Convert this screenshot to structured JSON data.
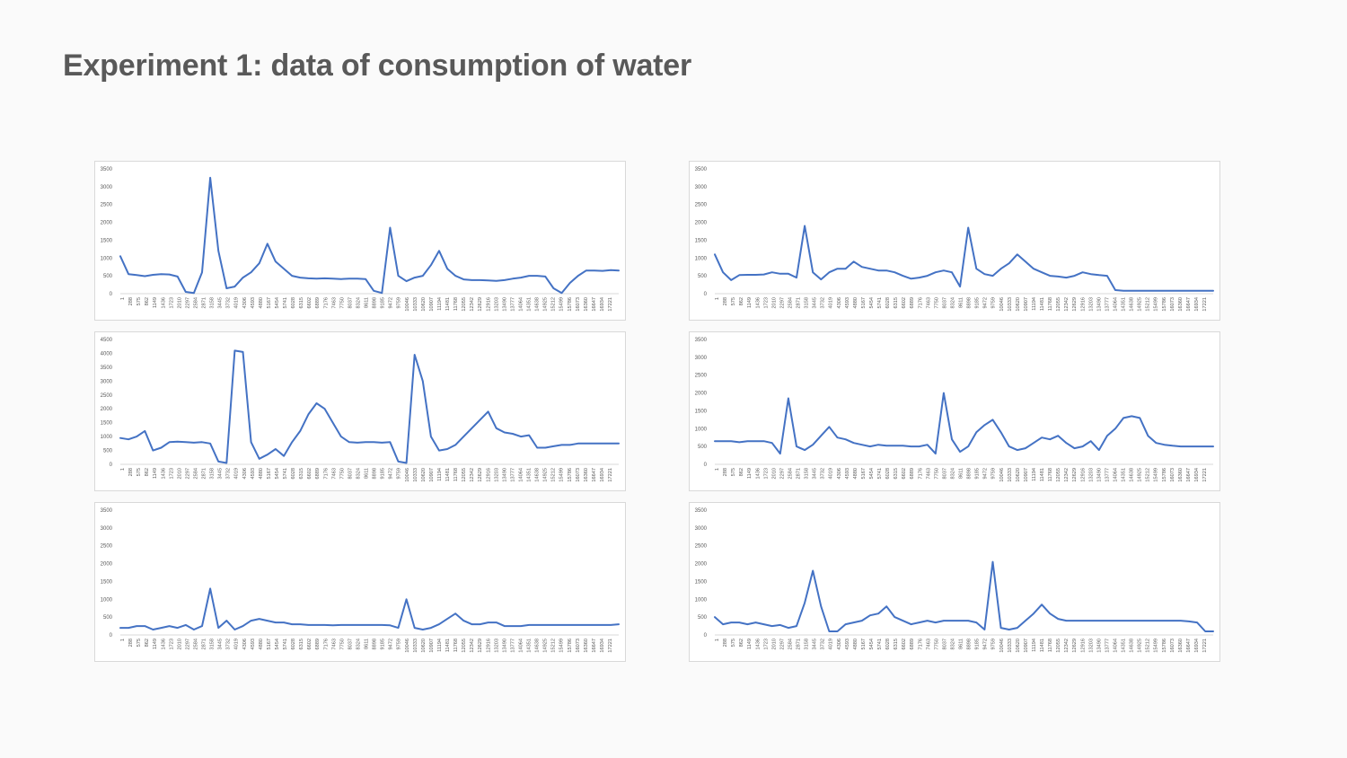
{
  "slide": {
    "title": "Experiment 1: data of consumption of water"
  },
  "chart_data": [
    {
      "type": "line",
      "legend": "none",
      "grid": false,
      "ylim": [
        0,
        3500
      ],
      "yticks": [
        "0",
        "500",
        "1000",
        "1500",
        "2000",
        "2500",
        "3000",
        "3500"
      ],
      "xticks": [
        "1",
        "288",
        "575",
        "862",
        "1149",
        "1436",
        "1723",
        "2010",
        "2297",
        "2584",
        "2871",
        "3158",
        "3445",
        "3732",
        "4019",
        "4306",
        "4593",
        "4880",
        "5167",
        "5454",
        "5741",
        "6028",
        "6315",
        "6602",
        "6889",
        "7176",
        "7463",
        "7750",
        "8037",
        "8324",
        "8611",
        "8898",
        "9185",
        "9472",
        "9759",
        "10046",
        "10333",
        "10620",
        "10907",
        "11194",
        "11481",
        "11768",
        "12055",
        "12342",
        "12629",
        "12916",
        "13203",
        "13490",
        "13777",
        "14064",
        "14351",
        "14638",
        "14925",
        "15212",
        "15499",
        "15786",
        "16073",
        "16360",
        "16647",
        "16934",
        "17221"
      ],
      "x": [
        1,
        288,
        575,
        862,
        1149,
        1436,
        1723,
        2010,
        2297,
        2584,
        2871,
        3158,
        3445,
        3732,
        4019,
        4306,
        4593,
        4880,
        5167,
        5454,
        5741,
        6028,
        6315,
        6602,
        6889,
        7176,
        7463,
        7750,
        8037,
        8324,
        8611,
        8898,
        9185,
        9472,
        9759,
        10046,
        10333,
        10620,
        10907,
        11194,
        11481,
        11768,
        12055,
        12342,
        12629,
        12916,
        13203,
        13490,
        13777,
        14064,
        14351,
        14638,
        14925,
        15212,
        15499,
        15786,
        16073,
        16360,
        16647,
        16934,
        17221,
        17500
      ],
      "values": [
        1050,
        550,
        520,
        490,
        530,
        550,
        540,
        480,
        50,
        20,
        600,
        3250,
        1200,
        150,
        200,
        450,
        600,
        850,
        1400,
        900,
        700,
        500,
        450,
        430,
        420,
        430,
        420,
        410,
        420,
        420,
        410,
        80,
        20,
        1850,
        500,
        350,
        450,
        500,
        800,
        1200,
        700,
        500,
        400,
        380,
        380,
        370,
        360,
        380,
        420,
        450,
        500,
        500,
        480,
        150,
        20,
        300,
        500,
        650,
        650,
        640,
        660,
        650
      ]
    },
    {
      "type": "line",
      "legend": "none",
      "grid": false,
      "ylim": [
        0,
        3500
      ],
      "yticks": [
        "0",
        "500",
        "1000",
        "1500",
        "2000",
        "2500",
        "3000",
        "3500"
      ],
      "xticks": [
        "1",
        "288",
        "575",
        "862",
        "1149",
        "1436",
        "1723",
        "2010",
        "2297",
        "2584",
        "2871",
        "3158",
        "3445",
        "3732",
        "4019",
        "4306",
        "4593",
        "4880",
        "5167",
        "5454",
        "5741",
        "6028",
        "6315",
        "6602",
        "6889",
        "7176",
        "7463",
        "7750",
        "8037",
        "8324",
        "8611",
        "8898",
        "9185",
        "9472",
        "9759",
        "10046",
        "10333",
        "10620",
        "10907",
        "11194",
        "11481",
        "11768",
        "12055",
        "12342",
        "12629",
        "12916",
        "13203",
        "13490",
        "13777",
        "14064",
        "14351",
        "14638",
        "14925",
        "15212",
        "15499",
        "15786",
        "16073",
        "16360",
        "16647",
        "16934",
        "17221"
      ],
      "x": [
        1,
        288,
        575,
        862,
        1149,
        1436,
        1723,
        2010,
        2297,
        2584,
        2871,
        3158,
        3445,
        3732,
        4019,
        4306,
        4593,
        4880,
        5167,
        5454,
        5741,
        6028,
        6315,
        6602,
        6889,
        7176,
        7463,
        7750,
        8037,
        8324,
        8611,
        8898,
        9185,
        9472,
        9759,
        10046,
        10333,
        10620,
        10907,
        11194,
        11481,
        11768,
        12055,
        12342,
        12629,
        12916,
        13203,
        13490,
        13777,
        14064,
        14351,
        14638,
        14925,
        15212,
        15499,
        15786,
        16073,
        16360,
        16647,
        16934,
        17221,
        17500
      ],
      "values": [
        1100,
        600,
        380,
        520,
        530,
        530,
        540,
        600,
        560,
        560,
        450,
        1900,
        600,
        400,
        600,
        700,
        700,
        900,
        750,
        700,
        650,
        650,
        600,
        500,
        420,
        450,
        500,
        600,
        650,
        600,
        200,
        1850,
        700,
        550,
        500,
        700,
        850,
        1100,
        900,
        700,
        600,
        500,
        480,
        450,
        500,
        600,
        550,
        520,
        500,
        100,
        80,
        80,
        80,
        80,
        80,
        80,
        80,
        80,
        80,
        80,
        80,
        80
      ]
    },
    {
      "type": "line",
      "legend": "none",
      "grid": false,
      "ylim": [
        0,
        4500
      ],
      "yticks": [
        "0",
        "500",
        "1000",
        "1500",
        "2000",
        "2500",
        "3000",
        "3500",
        "4000",
        "4500"
      ],
      "xticks": [
        "1",
        "288",
        "575",
        "862",
        "1149",
        "1436",
        "1723",
        "2010",
        "2297",
        "2584",
        "2871",
        "3158",
        "3445",
        "3732",
        "4019",
        "4306",
        "4593",
        "4880",
        "5167",
        "5454",
        "5741",
        "6028",
        "6315",
        "6602",
        "6889",
        "7176",
        "7463",
        "7750",
        "8037",
        "8324",
        "8611",
        "8898",
        "9185",
        "9472",
        "9759",
        "10046",
        "10333",
        "10620",
        "10907",
        "11194",
        "11481",
        "11768",
        "12055",
        "12342",
        "12629",
        "12916",
        "13203",
        "13490",
        "13777",
        "14064",
        "14351",
        "14638",
        "14925",
        "15212",
        "15499",
        "15786",
        "16073",
        "16360",
        "16647",
        "16934",
        "17221"
      ],
      "x": [
        1,
        288,
        575,
        862,
        1149,
        1436,
        1723,
        2010,
        2297,
        2584,
        2871,
        3158,
        3445,
        3732,
        4019,
        4306,
        4593,
        4880,
        5167,
        5454,
        5741,
        6028,
        6315,
        6602,
        6889,
        7176,
        7463,
        7750,
        8037,
        8324,
        8611,
        8898,
        9185,
        9472,
        9759,
        10046,
        10333,
        10620,
        10907,
        11194,
        11481,
        11768,
        12055,
        12342,
        12629,
        12916,
        13203,
        13490,
        13777,
        14064,
        14351,
        14638,
        14925,
        15212,
        15499,
        15786,
        16073,
        16360,
        16647,
        16934,
        17221,
        17500
      ],
      "values": [
        950,
        900,
        1000,
        1200,
        500,
        600,
        800,
        820,
        800,
        780,
        800,
        750,
        100,
        50,
        4100,
        4050,
        800,
        200,
        350,
        550,
        300,
        800,
        1200,
        1800,
        2200,
        2000,
        1500,
        1000,
        800,
        780,
        800,
        800,
        780,
        800,
        100,
        50,
        3950,
        3000,
        1000,
        500,
        550,
        700,
        1000,
        1300,
        1600,
        1900,
        1300,
        1150,
        1100,
        1000,
        1050,
        600,
        600,
        650,
        700,
        700,
        750,
        750,
        750,
        750,
        750,
        750
      ]
    },
    {
      "type": "line",
      "legend": "none",
      "grid": false,
      "ylim": [
        0,
        3500
      ],
      "yticks": [
        "0",
        "500",
        "1000",
        "1500",
        "2000",
        "2500",
        "3000",
        "3500"
      ],
      "xticks": [
        "1",
        "288",
        "575",
        "862",
        "1149",
        "1436",
        "1723",
        "2010",
        "2297",
        "2584",
        "2871",
        "3158",
        "3445",
        "3732",
        "4019",
        "4306",
        "4593",
        "4880",
        "5167",
        "5454",
        "5741",
        "6028",
        "6315",
        "6602",
        "6889",
        "7176",
        "7463",
        "7750",
        "8037",
        "8324",
        "8611",
        "8898",
        "9185",
        "9472",
        "9759",
        "10046",
        "10333",
        "10620",
        "10907",
        "11194",
        "11481",
        "11768",
        "12055",
        "12342",
        "12629",
        "12916",
        "13203",
        "13490",
        "13777",
        "14064",
        "14351",
        "14638",
        "14925",
        "15212",
        "15499",
        "15786",
        "16073",
        "16360",
        "16647",
        "16934",
        "17221"
      ],
      "x": [
        1,
        288,
        575,
        862,
        1149,
        1436,
        1723,
        2010,
        2297,
        2584,
        2871,
        3158,
        3445,
        3732,
        4019,
        4306,
        4593,
        4880,
        5167,
        5454,
        5741,
        6028,
        6315,
        6602,
        6889,
        7176,
        7463,
        7750,
        8037,
        8324,
        8611,
        8898,
        9185,
        9472,
        9759,
        10046,
        10333,
        10620,
        10907,
        11194,
        11481,
        11768,
        12055,
        12342,
        12629,
        12916,
        13203,
        13490,
        13777,
        14064,
        14351,
        14638,
        14925,
        15212,
        15499,
        15786,
        16073,
        16360,
        16647,
        16934,
        17221,
        17500
      ],
      "values": [
        650,
        650,
        650,
        620,
        650,
        650,
        650,
        600,
        300,
        1850,
        500,
        400,
        550,
        800,
        1050,
        750,
        700,
        600,
        550,
        500,
        550,
        520,
        520,
        520,
        500,
        500,
        550,
        300,
        2000,
        700,
        350,
        500,
        900,
        1100,
        1250,
        900,
        500,
        400,
        450,
        600,
        750,
        700,
        800,
        600,
        450,
        500,
        650,
        400,
        800,
        1000,
        1300,
        1350,
        1300,
        800,
        600,
        550,
        520,
        500,
        500,
        500,
        500,
        500
      ]
    },
    {
      "type": "line",
      "legend": "none",
      "grid": false,
      "ylim": [
        0,
        3500
      ],
      "yticks": [
        "0",
        "500",
        "1000",
        "1500",
        "2000",
        "2500",
        "3000",
        "3500"
      ],
      "xticks": [
        "1",
        "288",
        "575",
        "862",
        "1149",
        "1436",
        "1723",
        "2010",
        "2297",
        "2584",
        "2871",
        "3158",
        "3445",
        "3732",
        "4019",
        "4306",
        "4593",
        "4880",
        "5167",
        "5454",
        "5741",
        "6028",
        "6315",
        "6602",
        "6889",
        "7176",
        "7463",
        "7750",
        "8037",
        "8324",
        "8611",
        "8898",
        "9185",
        "9472",
        "9759",
        "10046",
        "10333",
        "10620",
        "10907",
        "11194",
        "11481",
        "11768",
        "12055",
        "12342",
        "12629",
        "12916",
        "13203",
        "13490",
        "13777",
        "14064",
        "14351",
        "14638",
        "14925",
        "15212",
        "15499",
        "15786",
        "16073",
        "16360",
        "16647",
        "16934",
        "17221"
      ],
      "x": [
        1,
        288,
        575,
        862,
        1149,
        1436,
        1723,
        2010,
        2297,
        2584,
        2871,
        3158,
        3445,
        3732,
        4019,
        4306,
        4593,
        4880,
        5167,
        5454,
        5741,
        6028,
        6315,
        6602,
        6889,
        7176,
        7463,
        7750,
        8037,
        8324,
        8611,
        8898,
        9185,
        9472,
        9759,
        10046,
        10333,
        10620,
        10907,
        11194,
        11481,
        11768,
        12055,
        12342,
        12629,
        12916,
        13203,
        13490,
        13777,
        14064,
        14351,
        14638,
        14925,
        15212,
        15499,
        15786,
        16073,
        16360,
        16647,
        16934,
        17221,
        17500
      ],
      "values": [
        200,
        200,
        250,
        250,
        150,
        200,
        250,
        200,
        280,
        150,
        250,
        1300,
        200,
        400,
        150,
        250,
        400,
        450,
        400,
        350,
        350,
        300,
        300,
        280,
        280,
        280,
        270,
        280,
        280,
        280,
        280,
        280,
        280,
        270,
        200,
        1000,
        200,
        150,
        200,
        300,
        450,
        600,
        400,
        300,
        300,
        350,
        350,
        250,
        250,
        250,
        280,
        280,
        280,
        280,
        280,
        280,
        280,
        280,
        280,
        280,
        280,
        300
      ]
    },
    {
      "type": "line",
      "legend": "none",
      "grid": false,
      "ylim": [
        0,
        3500
      ],
      "yticks": [
        "0",
        "500",
        "1000",
        "1500",
        "2000",
        "2500",
        "3000",
        "3500"
      ],
      "xticks": [
        "1",
        "288",
        "575",
        "862",
        "1149",
        "1436",
        "1723",
        "2010",
        "2297",
        "2584",
        "2871",
        "3158",
        "3445",
        "3732",
        "4019",
        "4306",
        "4593",
        "4880",
        "5167",
        "5454",
        "5741",
        "6028",
        "6315",
        "6602",
        "6889",
        "7176",
        "7463",
        "7750",
        "8037",
        "8324",
        "8611",
        "8898",
        "9185",
        "9472",
        "9759",
        "10046",
        "10333",
        "10620",
        "10907",
        "11194",
        "11481",
        "11768",
        "12055",
        "12342",
        "12629",
        "12916",
        "13203",
        "13490",
        "13777",
        "14064",
        "14351",
        "14638",
        "14925",
        "15212",
        "15499",
        "15786",
        "16073",
        "16360",
        "16647",
        "16934",
        "17221"
      ],
      "x": [
        1,
        288,
        575,
        862,
        1149,
        1436,
        1723,
        2010,
        2297,
        2584,
        2871,
        3158,
        3445,
        3732,
        4019,
        4306,
        4593,
        4880,
        5167,
        5454,
        5741,
        6028,
        6315,
        6602,
        6889,
        7176,
        7463,
        7750,
        8037,
        8324,
        8611,
        8898,
        9185,
        9472,
        9759,
        10046,
        10333,
        10620,
        10907,
        11194,
        11481,
        11768,
        12055,
        12342,
        12629,
        12916,
        13203,
        13490,
        13777,
        14064,
        14351,
        14638,
        14925,
        15212,
        15499,
        15786,
        16073,
        16360,
        16647,
        16934,
        17221,
        17500
      ],
      "values": [
        500,
        300,
        350,
        350,
        300,
        350,
        300,
        250,
        280,
        200,
        250,
        900,
        1800,
        800,
        100,
        100,
        300,
        350,
        400,
        550,
        600,
        800,
        500,
        400,
        300,
        350,
        400,
        350,
        400,
        400,
        400,
        400,
        350,
        150,
        2050,
        200,
        150,
        200,
        400,
        600,
        850,
        600,
        450,
        400,
        400,
        400,
        400,
        400,
        400,
        400,
        400,
        400,
        400,
        400,
        400,
        400,
        400,
        400,
        380,
        350,
        100,
        100
      ]
    }
  ]
}
